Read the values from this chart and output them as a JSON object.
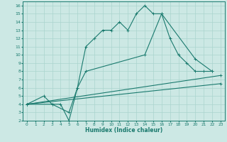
{
  "xlabel": "Humidex (Indice chaleur)",
  "bg_color": "#cce8e4",
  "line_color": "#1a7a6e",
  "grid_color": "#aad4ce",
  "xlim": [
    -0.5,
    23.5
  ],
  "ylim": [
    2,
    16.5
  ],
  "xticks": [
    0,
    1,
    2,
    3,
    4,
    5,
    6,
    7,
    8,
    9,
    10,
    11,
    12,
    13,
    14,
    15,
    16,
    17,
    18,
    19,
    20,
    21,
    22,
    23
  ],
  "yticks": [
    2,
    3,
    4,
    5,
    6,
    7,
    8,
    9,
    10,
    11,
    12,
    13,
    14,
    15,
    16
  ],
  "line1_x": [
    0,
    2,
    3,
    4,
    5,
    6,
    7,
    8,
    9,
    10,
    11,
    12,
    13,
    14,
    15,
    16,
    17,
    18,
    19,
    20,
    21,
    22
  ],
  "line1_y": [
    4,
    5,
    4,
    4,
    2,
    6,
    11,
    12,
    13,
    13,
    14,
    13,
    15,
    16,
    15,
    15,
    12,
    10,
    9,
    8,
    8,
    8
  ],
  "line2_x": [
    0,
    3,
    5,
    6,
    7,
    14,
    16,
    20,
    22
  ],
  "line2_y": [
    4,
    4,
    3,
    6,
    8,
    10,
    15,
    9.5,
    8
  ],
  "line3_x": [
    0,
    23
  ],
  "line3_y": [
    4,
    7.5
  ],
  "line4_x": [
    0,
    23
  ],
  "line4_y": [
    4,
    6.5
  ]
}
